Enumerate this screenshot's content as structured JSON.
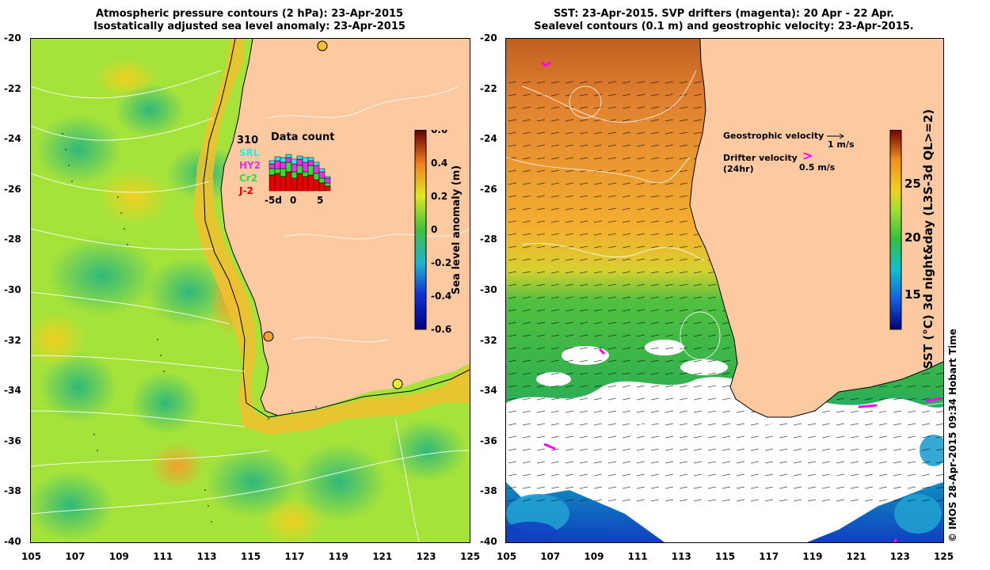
{
  "left_panel": {
    "title_line1": "Atmospheric pressure contours (2 hPa): 23-Apr-2015",
    "title_line2": "Isostatically adjusted sea level anomaly: 23-Apr-2015",
    "colorbar_label": "Sea level anomaly (m)",
    "colorbar_ticks": [
      "0.6",
      "0.4",
      "0.2",
      "0",
      "-0.2",
      "-0.4",
      "-0.6"
    ],
    "colorbar_range": [
      -0.6,
      0.6
    ],
    "inset": {
      "title": "Data count",
      "count_label": "310",
      "satellites": [
        {
          "name": "SRL",
          "color": "#33e6e6"
        },
        {
          "name": "HY2",
          "color": "#e633e6"
        },
        {
          "name": "Cr2",
          "color": "#33dd33"
        },
        {
          "name": "J-2",
          "color": "#e60000"
        }
      ],
      "x_ticks": [
        "-5d",
        "0",
        "5"
      ]
    }
  },
  "right_panel": {
    "title_line1": "SST: 23-Apr-2015. SVP drifters (magenta): 20 Apr - 22 Apr.",
    "title_line2": "Sealevel contours (0.1 m) and geostrophic velocity: 23-Apr-2015.",
    "colorbar_label": "SST (°C) 3d night&day (L3S-3d QL>=2)",
    "colorbar_ticks": [
      "25",
      "20",
      "15"
    ],
    "legend": {
      "geostrophic_label": "Geostrophic velocity",
      "geostrophic_scale": "1 m/s",
      "drifter_label_line1": "Drifter velocity",
      "drifter_label_line2": "(24hr)",
      "drifter_scale": "0.5 m/s"
    }
  },
  "x_ticks": [
    "105",
    "107",
    "109",
    "111",
    "113",
    "115",
    "117",
    "119",
    "121",
    "123",
    "125"
  ],
  "y_ticks": [
    "-20",
    "-22",
    "-24",
    "-26",
    "-28",
    "-30",
    "-32",
    "-34",
    "-36",
    "-38",
    "-40"
  ],
  "credit": "© IMOS 28-Apr-2015 09:34 Hobart Time",
  "colors": {
    "land": "#fdc9a0",
    "sla_green": "#a6e33a",
    "sla_yellow": "#e8f02a",
    "sst_orange": "#f2a030",
    "sst_green": "#3cc040",
    "drifter": "#ff00ff"
  }
}
